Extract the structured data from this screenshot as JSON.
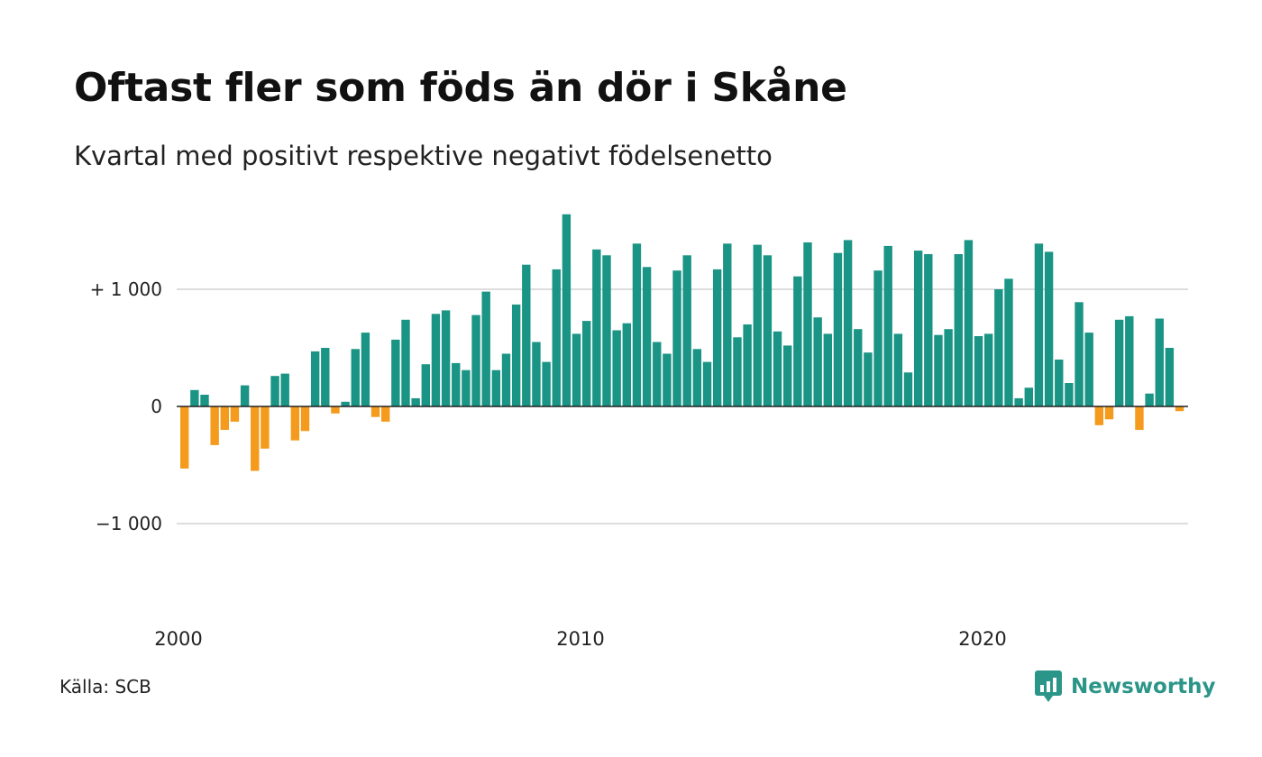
{
  "header": {
    "title": "Oftast fler som föds än dör i Skåne",
    "subtitle": "Kvartal med positivt respektive negativt födelsenetto"
  },
  "footer": {
    "source": "Källa: SCB",
    "brand": "Newsworthy",
    "brand_icon": "chart-bubble-icon"
  },
  "colors": {
    "positive": "#1a9484",
    "negative": "#f49a1c",
    "brand": "#2a9588",
    "grid": "#dddddd",
    "zero_line": "#222222"
  },
  "chart_data": {
    "type": "bar",
    "title": "Oftast fler som föds än dör i Skåne",
    "subtitle": "Kvartal med positivt respektive negativt födelsenetto",
    "xlabel": "",
    "ylabel": "",
    "x_start_year": 2000,
    "periods_per_year": 4,
    "x_tick_labels": [
      "2000",
      "2010",
      "2020"
    ],
    "y_ticks": [
      {
        "value": 1000,
        "label": "+ 1 000"
      },
      {
        "value": 0,
        "label": "0"
      },
      {
        "value": -1000,
        "label": "−1 000"
      }
    ],
    "ylim": [
      -1700,
      1700
    ],
    "grid": true,
    "values": [
      -530,
      140,
      100,
      -330,
      -200,
      -130,
      180,
      -550,
      -360,
      260,
      280,
      -290,
      -210,
      470,
      500,
      -60,
      40,
      490,
      630,
      -90,
      -130,
      570,
      740,
      70,
      360,
      790,
      820,
      370,
      310,
      780,
      980,
      310,
      450,
      870,
      1210,
      550,
      380,
      1170,
      1640,
      620,
      730,
      1340,
      1290,
      650,
      710,
      1390,
      1190,
      550,
      450,
      1160,
      1290,
      490,
      380,
      1170,
      1390,
      590,
      700,
      1380,
      1290,
      640,
      520,
      1110,
      1400,
      760,
      620,
      1310,
      1420,
      660,
      460,
      1160,
      1370,
      620,
      290,
      1330,
      1300,
      610,
      660,
      1300,
      1420,
      600,
      620,
      1000,
      1090,
      70,
      160,
      1390,
      1320,
      400,
      200,
      890,
      630,
      -160,
      -110,
      740,
      770,
      -200,
      110,
      750,
      500,
      -40
    ]
  }
}
